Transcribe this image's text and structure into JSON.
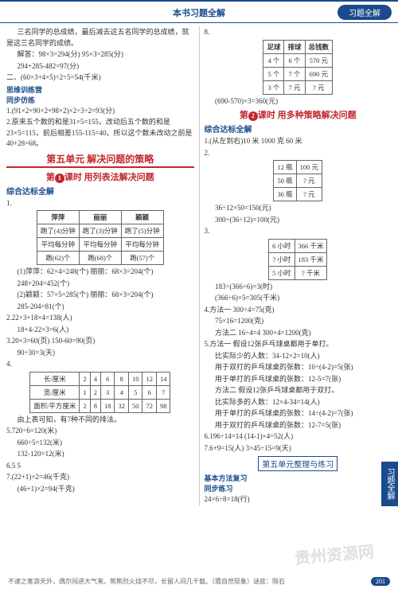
{
  "header": {
    "title": "本书习题全解",
    "badge": "习题全解"
  },
  "left": {
    "p1": "三名同学的总成绩，最后减去这五名同学的总成绩，就是这三名同学的成绩。",
    "p2": "解答：98×3=294(分)  95×3=285(分)",
    "p3": "294+285-482=97(分)",
    "p4": "二、(60×3+4×5)÷2÷5=54(千米)",
    "s1": "思维训练营",
    "s2": "同步仿练",
    "p5": "1.(91×2+90×2+98×2)×2÷3÷2=93(分)",
    "p6": "2.原来五个数的和是31×5=155，改动后五个数的和是23×5=115，前后相差155-115=40，所以这个数未改动之前是40+28=68。",
    "u1": "第五单元  解决问题的策略",
    "sub1": "第",
    "sub1n": "1",
    "sub1b": "课时  用列表法解决问题",
    "s3": "综合达标全解",
    "t1": {
      "h": [
        "萍萍",
        "丽丽",
        "颖颖"
      ],
      "r": [
        [
          "跑了(4)分钟",
          "跑了(3)分钟",
          "跑了(5)分钟"
        ],
        [
          "平均每分钟",
          "平均每分钟",
          "平均每分钟"
        ],
        [
          "跑(62)个",
          "跑(68)个",
          "跑(57)个"
        ]
      ]
    },
    "p7": "(1)萍萍：62×4=248(个)  丽丽：68×3=204(个)",
    "p8": "248+204=452(个)",
    "p9": "(2)颖颖：57×5=285(个)  丽丽：68×3=204(个)",
    "p10": "285-204=81(个)",
    "p11": "2.22×3+18×4=138(人)",
    "p12": "18+4-22×3=6(人)",
    "p13": "3.20×3=60(页)  150-60=90(页)",
    "p14": "90÷30=3(天)",
    "t2": {
      "h": [
        "长/厘米",
        "2",
        "4",
        "6",
        "8",
        "10",
        "12",
        "14"
      ],
      "r": [
        [
          "宽/厘米",
          "1",
          "2",
          "3",
          "4",
          "5",
          "6",
          "7"
        ],
        [
          "面积/平方厘米",
          "2",
          "8",
          "18",
          "32",
          "50",
          "72",
          "98"
        ]
      ]
    },
    "p15": "由上表可知，有7种不同的排法。",
    "p16": "5.720÷6=120(米)",
    "p17": "660÷5=132(米)",
    "p18": "132-120=12(米)",
    "p19": "6.5  5",
    "p20": "7.(22+1)×2=46(千克)",
    "p21": "(46+1)×2=94(千克)"
  },
  "right": {
    "t3": {
      "h": [
        "足球",
        "排球",
        "总钱数"
      ],
      "r": [
        [
          "4 个",
          "6 个",
          "570 元"
        ],
        [
          "5 个",
          "7 个",
          "690 元"
        ],
        [
          "3 个",
          "7 元",
          "? 元"
        ]
      ]
    },
    "p1": "(690-570)×3=360(元)",
    "sub2": "第",
    "sub2n": "2",
    "sub2b": "课时  用多种策略解决问题",
    "s1": "综合达标全解",
    "p2": "1.(从左到右)10 米  1000 克  60 米",
    "t4": {
      "r": [
        [
          "12 瓶",
          "100 元"
        ],
        [
          "50 瓶",
          "? 元"
        ],
        [
          "36 瓶",
          "? 元"
        ]
      ]
    },
    "p3": "36÷12×50=150(元)",
    "p4": "300÷(36÷12)=100(元)",
    "t5": {
      "r": [
        [
          "6 小时",
          "366 千米"
        ],
        [
          "? 小时",
          "183 千米"
        ],
        [
          "5 小时",
          "? 千米"
        ]
      ]
    },
    "p5": "183÷(366÷6)=3(时)",
    "p6": "(366÷6)×5=305(千米)",
    "p7": "4.方法一  300÷4=75(克)",
    "p8": "75×16=1200(克)",
    "p9": "方法二  16÷4=4  300×4=1200(克)",
    "p10": "5.方法一  假设12张乒乓球桌都用于单打。",
    "p11": "比实际少的人数：34-12×2=10(人)",
    "p12": "用于双打的乒乓球桌的张数：10÷(4-2)=5(张)",
    "p13": "用于单打的乒乓球桌的张数：12-5=7(张)",
    "p14": "方法二  假设12张乒乓球桌都用于双打。",
    "p15": "比实际多的人数：12×4-34=14(人)",
    "p16": "用于单打的乒乓球桌的张数：14÷(4-2)=7(张)",
    "p17": "用于双打的乒乓球桌的张数：12-7=5(张)",
    "p18": "6.196÷14=14  (14-1)×4=52(人)",
    "p19": "7.6+9=15(人)  3×45÷15=9(天)",
    "box": "第五单元整理与练习",
    "s2": "基本方法复习",
    "s3": "同步练习",
    "p20": "24×6÷8=18(行)"
  },
  "footer": {
    "quote": "不速之客游天外，偶尔闯进大气来。熊熊烈火烧不尽，长留人间几千载。（猜自然现象）谜底：陨石",
    "page": "201"
  },
  "sidetab": "习题全解",
  "watermark": "贵州资源网"
}
